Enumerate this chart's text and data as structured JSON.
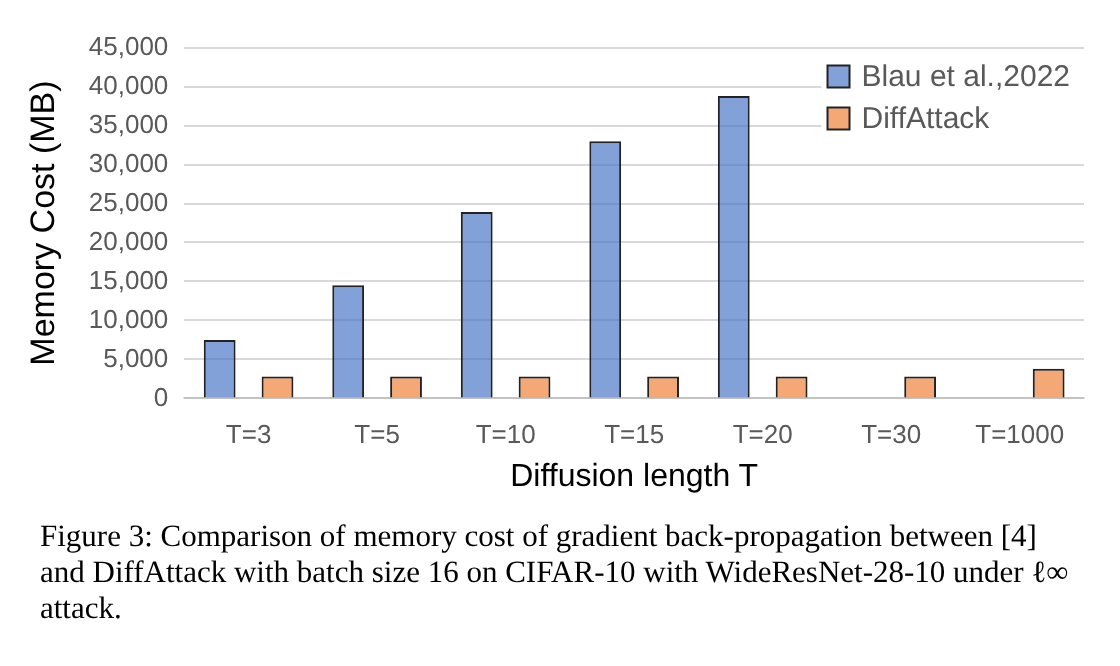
{
  "chart_data": {
    "type": "bar",
    "xlabel": "Diffusion length T",
    "ylabel": "Memory Cost (MB)",
    "categories": [
      "T=3",
      "T=5",
      "T=10",
      "T=15",
      "T=20",
      "T=30",
      "T=1000"
    ],
    "series": [
      {
        "name": "Blau et al.,2022",
        "color": "#4472c4",
        "values": [
          7500,
          14500,
          23900,
          33000,
          38800,
          null,
          null
        ]
      },
      {
        "name": "DiffAttack",
        "color": "#ed7d31",
        "values": [
          2800,
          2800,
          2800,
          2800,
          2800,
          2800,
          3800
        ]
      }
    ],
    "ylim": [
      0,
      45000
    ],
    "yticks": [
      0,
      {
        "value": 5000,
        "label": "5,000"
      },
      {
        "value": 10000,
        "label": "10,000"
      },
      {
        "value": 15000,
        "label": "15,000"
      },
      {
        "value": 20000,
        "label": "20,000"
      },
      {
        "value": 25000,
        "label": "25,000"
      },
      {
        "value": 30000,
        "label": "30,000"
      },
      {
        "value": 35000,
        "label": "35,000"
      },
      {
        "value": 40000,
        "label": "40,000"
      },
      {
        "value": 45000,
        "label": "45,000"
      }
    ],
    "grid": "y",
    "legend": "top right",
    "annotations": [
      "Figure 3: Comparison of memory cost of gradient back-propagation between [4] and DiffAttack with batch size 16 on CIFAR-10 with WideResNet-28-10 under ℓ∞ attack."
    ]
  }
}
